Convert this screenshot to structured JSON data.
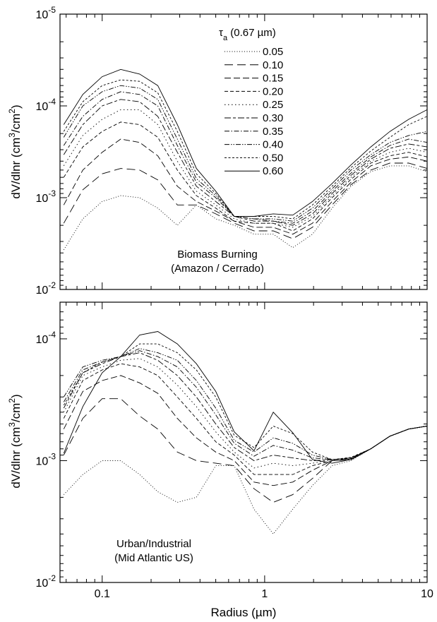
{
  "figure": {
    "xlabel": "Radius (µm)",
    "x_tick_labels": [
      "0.1",
      "1",
      "10"
    ]
  },
  "chart_data": [
    {
      "type": "line",
      "panel": "top",
      "xscale": "log",
      "yscale": "log",
      "xlim": [
        0.055,
        10
      ],
      "ylim": [
        1e-05,
        0.01
      ],
      "y_inverted": true,
      "y_tick_labels": [
        {
          "value": 1e-05,
          "base": "10",
          "exp": "-5"
        },
        {
          "value": 0.0001,
          "base": "10",
          "exp": "-4"
        },
        {
          "value": 0.001,
          "base": "10",
          "exp": "-3"
        },
        {
          "value": 0.01,
          "base": "10",
          "exp": "-2"
        }
      ],
      "ylabel": "dV/dlnr (cm",
      "ylabel_sup1": "3",
      "ylabel_mid": "/cm",
      "ylabel_sup2": "2",
      "ylabel_end": ")",
      "annotation": [
        "Biomass Burning",
        "(Amazon / Cerrado)"
      ],
      "legend": {
        "title": "τ",
        "title_sub": "a",
        "title_suffix": " (0.67 µm)",
        "placement": "top-center"
      },
      "x": [
        0.058,
        0.076,
        0.1,
        0.13,
        0.17,
        0.22,
        0.29,
        0.38,
        0.5,
        0.65,
        0.86,
        1.13,
        1.49,
        1.97,
        2.6,
        3.4,
        4.5,
        5.9,
        7.7,
        10
      ],
      "series": [
        {
          "name": "0.05",
          "dash": "1,2.5",
          "values": [
            0.0037,
            0.0017,
            0.0011,
            0.00095,
            0.001,
            0.0013,
            0.002,
            0.0012,
            0.0017,
            0.002,
            0.0025,
            0.0025,
            0.0035,
            0.0025,
            0.0013,
            0.00075,
            0.00052,
            0.00045,
            0.00045,
            0.00052
          ]
        },
        {
          "name": "0.10",
          "dash": "12,6",
          "values": [
            0.0019,
            0.00082,
            0.00055,
            0.00048,
            0.0005,
            0.00064,
            0.0012,
            0.0012,
            0.0015,
            0.0019,
            0.0023,
            0.0023,
            0.0028,
            0.0021,
            0.0012,
            0.00072,
            0.0005,
            0.00042,
            0.00042,
            0.00048
          ]
        },
        {
          "name": "0.15",
          "dash": "9,4",
          "values": [
            0.0012,
            0.0005,
            0.00032,
            0.00023,
            0.00025,
            0.00035,
            0.00075,
            0.0011,
            0.0014,
            0.0018,
            0.0021,
            0.0021,
            0.0025,
            0.0019,
            0.0011,
            0.00068,
            0.00045,
            0.00038,
            0.00036,
            0.0004
          ]
        },
        {
          "name": "0.20",
          "dash": "5,3",
          "values": [
            0.0006,
            0.00028,
            0.00019,
            0.00015,
            0.00016,
            0.00022,
            0.0005,
            0.00095,
            0.0013,
            0.0018,
            0.0019,
            0.0019,
            0.0023,
            0.0017,
            0.001,
            0.00063,
            0.00042,
            0.00035,
            0.00032,
            0.00036
          ]
        },
        {
          "name": "0.25",
          "dash": "1.5,3.5",
          "values": [
            0.00045,
            0.00021,
            0.00014,
            0.00011,
            0.00011,
            0.00016,
            0.0004,
            0.00085,
            0.0012,
            0.0017,
            0.0019,
            0.0019,
            0.0021,
            0.0016,
            0.00095,
            0.0006,
            0.0004,
            0.00032,
            0.00029,
            0.00032
          ]
        },
        {
          "name": "0.30",
          "dash": "9,3,4,3",
          "values": [
            0.00034,
            0.00016,
            0.0001,
            8.5e-05,
            9e-05,
            0.00013,
            0.00032,
            0.00075,
            0.0011,
            0.0016,
            0.0018,
            0.0018,
            0.002,
            0.0015,
            0.0009,
            0.00057,
            0.00038,
            0.00029,
            0.00026,
            0.00028
          ]
        },
        {
          "name": "0.35",
          "dash": "7,2.5,1.5,2.5",
          "values": [
            0.00027,
            0.00013,
            8.5e-05,
            7e-05,
            7.5e-05,
            0.0001,
            0.00027,
            0.00068,
            0.001,
            0.0016,
            0.0017,
            0.0018,
            0.0019,
            0.0014,
            0.00085,
            0.00054,
            0.00036,
            0.00027,
            0.00023,
            0.00025
          ]
        },
        {
          "name": "0.40",
          "dash": "7,2,1.5,2,1.5,2",
          "values": [
            0.00022,
            0.0001,
            7e-05,
            6e-05,
            6.4e-05,
            8.5e-05,
            0.00023,
            0.00062,
            0.00095,
            0.0016,
            0.0017,
            0.0017,
            0.0018,
            0.0013,
            0.0008,
            0.0005,
            0.00034,
            0.00025,
            0.00021,
            0.00019
          ]
        },
        {
          "name": "0.50",
          "dash": "3,2.5",
          "values": [
            0.00019,
            9e-05,
            6e-05,
            5.2e-05,
            5.4e-05,
            7.2e-05,
            0.00019,
            0.00055,
            0.0009,
            0.0016,
            0.0016,
            0.0016,
            0.0017,
            0.0012,
            0.00075,
            0.00047,
            0.00031,
            0.00022,
            0.00016,
            0.00013
          ]
        },
        {
          "name": "0.60",
          "dash": "",
          "values": [
            0.00016,
            7.5e-05,
            4.8e-05,
            4e-05,
            4.5e-05,
            6e-05,
            0.00016,
            0.00048,
            0.00085,
            0.0016,
            0.0016,
            0.0015,
            0.00155,
            0.0011,
            0.0007,
            0.00044,
            0.00028,
            0.00019,
            0.00014,
            0.00011
          ]
        }
      ]
    },
    {
      "type": "line",
      "panel": "bottom",
      "xscale": "log",
      "yscale": "log",
      "xlim": [
        0.055,
        10
      ],
      "ylim": [
        5e-05,
        0.01
      ],
      "y_inverted": true,
      "y_tick_labels": [
        {
          "value": 0.0001,
          "base": "10",
          "exp": "-4"
        },
        {
          "value": 0.001,
          "base": "10",
          "exp": "-3"
        },
        {
          "value": 0.01,
          "base": "10",
          "exp": "-2"
        }
      ],
      "ylabel": "dV/dlnr (cm",
      "ylabel_sup1": "3",
      "ylabel_mid": "/cm",
      "ylabel_sup2": "2",
      "ylabel_end": ")",
      "annotation": [
        "Urban/Industrial",
        "(Mid Atlantic US)"
      ],
      "x": [
        0.058,
        0.076,
        0.1,
        0.13,
        0.17,
        0.22,
        0.29,
        0.38,
        0.5,
        0.65,
        0.86,
        1.13,
        1.49,
        1.97,
        2.6,
        3.4,
        4.5,
        5.9,
        7.7,
        10
      ],
      "series": [
        {
          "name": "0.05",
          "dash": "1,2.5",
          "values": [
            0.0019,
            0.0013,
            0.001,
            0.001,
            0.0013,
            0.0018,
            0.0022,
            0.002,
            0.0011,
            0.0011,
            0.0025,
            0.004,
            0.0025,
            0.0016,
            0.0011,
            0.001,
            0.0008,
            0.00063,
            0.00055,
            0.00052
          ]
        },
        {
          "name": "0.10",
          "dash": "12,6",
          "values": [
            0.0009,
            0.00045,
            0.00031,
            0.00031,
            0.00043,
            0.00055,
            0.00085,
            0.001,
            0.00105,
            0.0011,
            0.0017,
            0.0022,
            0.0019,
            0.0014,
            0.001,
            0.00098,
            0.0008,
            0.00063,
            0.00055,
            0.00052
          ]
        },
        {
          "name": "0.15",
          "dash": "9,4",
          "values": [
            0.00055,
            0.00027,
            0.00022,
            0.0002,
            0.00023,
            0.00028,
            0.00045,
            0.00065,
            0.00085,
            0.001,
            0.0015,
            0.0016,
            0.0015,
            0.0012,
            0.001,
            0.00098,
            0.0008,
            0.00063,
            0.00055,
            0.00052
          ]
        },
        {
          "name": "0.20",
          "dash": "5,3",
          "values": [
            0.00045,
            0.00022,
            0.00018,
            0.00016,
            0.00017,
            0.0002,
            0.0003,
            0.00045,
            0.0007,
            0.0009,
            0.0013,
            0.0013,
            0.0013,
            0.0011,
            0.001,
            0.00097,
            0.0008,
            0.00063,
            0.00055,
            0.00052
          ]
        },
        {
          "name": "0.25",
          "dash": "1.5,3.5",
          "values": [
            0.0004,
            0.0002,
            0.00017,
            0.00015,
            0.000145,
            0.00017,
            0.00024,
            0.00036,
            0.00058,
            0.00085,
            0.00115,
            0.00105,
            0.0011,
            0.00105,
            0.00098,
            0.00097,
            0.0008,
            0.00063,
            0.00055,
            0.00052
          ]
        },
        {
          "name": "0.30",
          "dash": "9,3,4,3",
          "values": [
            0.00037,
            0.00019,
            0.00016,
            0.00014,
            0.00013,
            0.00015,
            0.0002,
            0.0003,
            0.0005,
            0.00078,
            0.001,
            0.0009,
            0.00095,
            0.001,
            0.00098,
            0.00096,
            0.0008,
            0.00063,
            0.00055,
            0.00052
          ]
        },
        {
          "name": "0.35",
          "dash": "7,2.5,1.5,2.5",
          "values": [
            0.00033,
            0.00018,
            0.000155,
            0.00014,
            0.000125,
            0.00014,
            0.00017,
            0.00025,
            0.00042,
            0.00072,
            0.00092,
            0.00075,
            0.00082,
            0.00095,
            0.00098,
            0.00095,
            0.0008,
            0.00063,
            0.00055,
            0.00052
          ]
        },
        {
          "name": "0.40",
          "dash": "7,2,1.5,2,1.5,2",
          "values": [
            0.0003,
            0.00017,
            0.00015,
            0.00014,
            0.00012,
            0.00013,
            0.00015,
            0.00022,
            0.00037,
            0.00068,
            0.00085,
            0.00065,
            0.00072,
            0.0009,
            0.00098,
            0.00095,
            0.0008,
            0.00063,
            0.00055,
            0.00052
          ]
        },
        {
          "name": "0.50",
          "dash": "3,2.5",
          "values": [
            0.00035,
            0.00019,
            0.000155,
            0.00014,
            0.00011,
            0.00011,
            0.00013,
            0.00018,
            0.0003,
            0.00062,
            0.00078,
            0.00052,
            0.0006,
            0.00085,
            0.00098,
            0.00094,
            0.0008,
            0.00063,
            0.00055,
            0.00052
          ]
        },
        {
          "name": "0.60",
          "dash": "",
          "values": [
            0.00087,
            0.00036,
            0.00019,
            0.00014,
            9.3e-05,
            8.7e-05,
            0.00011,
            0.00016,
            0.00027,
            0.00058,
            0.00083,
            0.0004,
            0.00059,
            0.00098,
            0.00105,
            0.00098,
            0.0008,
            0.00063,
            0.00055,
            0.00052
          ]
        }
      ]
    }
  ]
}
